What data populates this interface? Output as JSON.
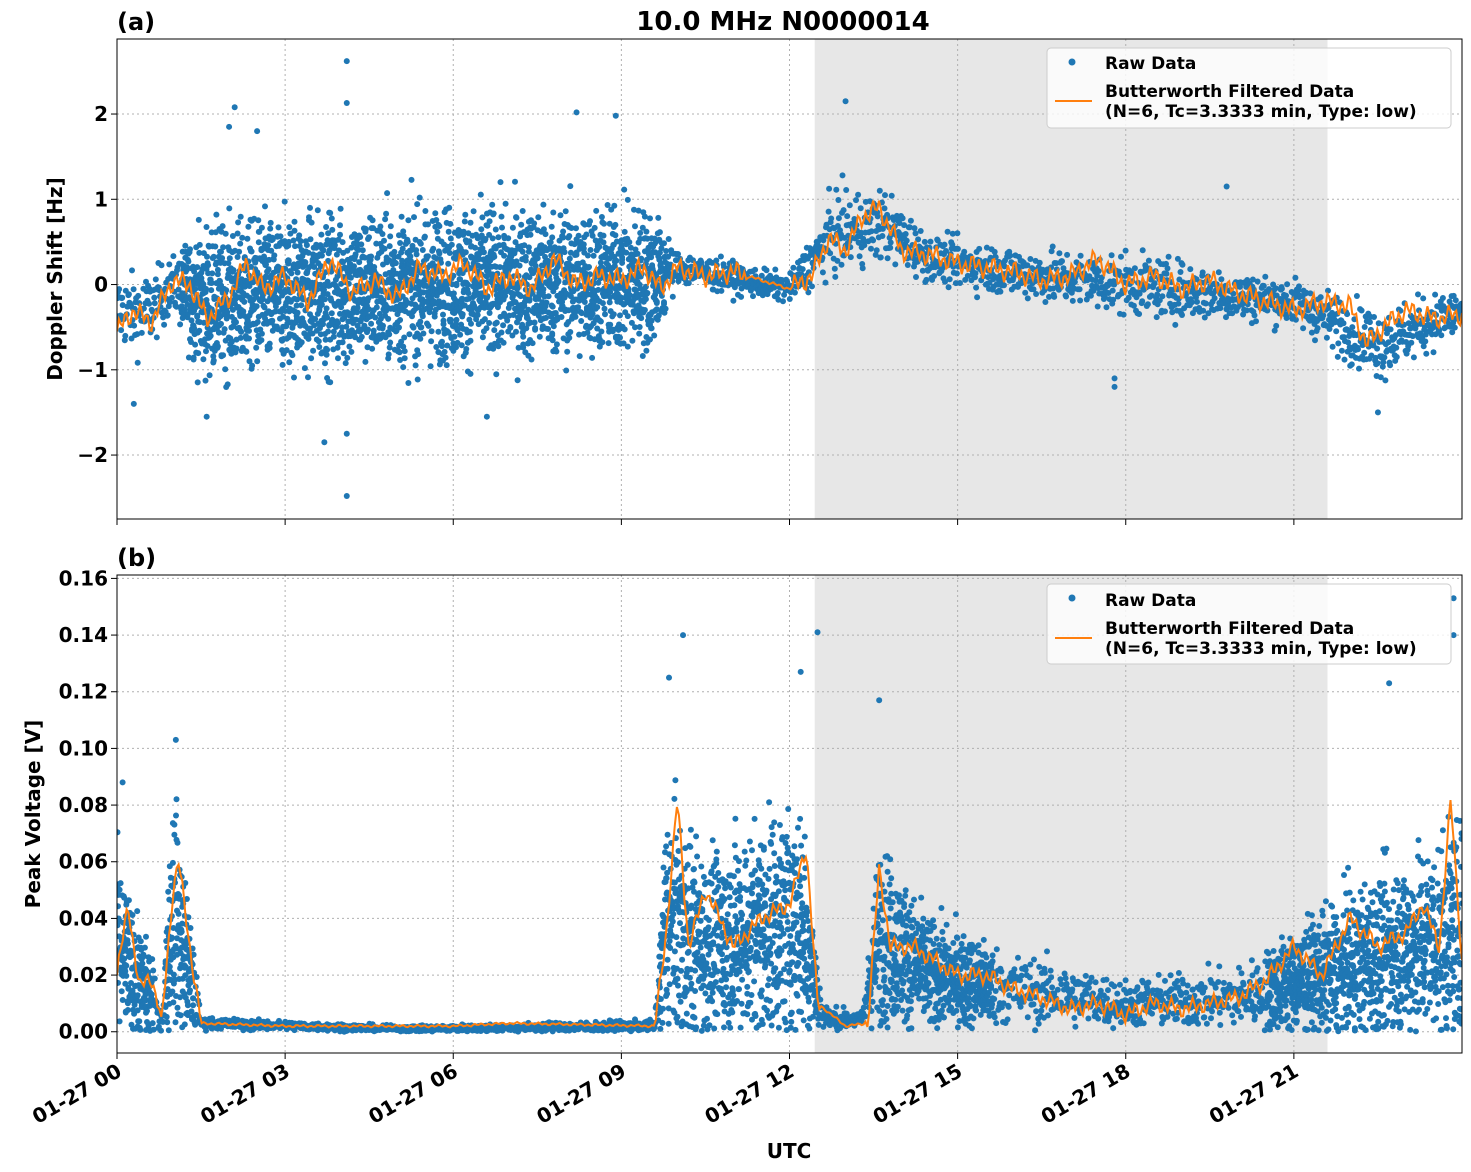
{
  "figure": {
    "title": "10.0 MHz N0000014",
    "xlabel": "UTC",
    "x_tick_labels": [
      "01-27 00",
      "01-27 03",
      "01-27 06",
      "01-27 09",
      "01-27 12",
      "01-27 15",
      "01-27 18",
      "01-27 21"
    ]
  },
  "colors": {
    "raw": "#1f77b4",
    "filtered": "#ff7f0e",
    "shade": "#e7e7e7",
    "grid": "#b0b0b0"
  },
  "chart_data": [
    {
      "type": "scatter",
      "panel_label": "(a)",
      "ylabel": "Doppler Shift [Hz]",
      "x_unit": "hours UTC from 01-27 00",
      "xlim": [
        0,
        24
      ],
      "ylim": [
        -2.75,
        2.88
      ],
      "yticks": [
        -2,
        -1,
        0,
        1,
        2
      ],
      "ytick_labels": [
        "−2",
        "−1",
        "0",
        "1",
        "2"
      ],
      "grid": true,
      "legend": {
        "placement": "top-right",
        "raw_label": "Raw Data",
        "filtered_label_line1": "Butterworth Filtered Data",
        "filtered_label_line2": "(N=6, Tc=3.3333 min, Type: low)"
      },
      "shaded_span": [
        12.45,
        21.6
      ],
      "raw_band": [
        {
          "x": 0.0,
          "y": -0.3,
          "spread": 0.4
        },
        {
          "x": 0.5,
          "y": -0.35,
          "spread": 0.45
        },
        {
          "x": 1.0,
          "y": 0.0,
          "spread": 0.3
        },
        {
          "x": 1.5,
          "y": -0.2,
          "spread": 0.8
        },
        {
          "x": 3.0,
          "y": -0.1,
          "spread": 0.85
        },
        {
          "x": 6.0,
          "y": 0.0,
          "spread": 0.85
        },
        {
          "x": 9.5,
          "y": 0.05,
          "spread": 0.8
        },
        {
          "x": 10.0,
          "y": 0.2,
          "spread": 0.2
        },
        {
          "x": 12.0,
          "y": -0.05,
          "spread": 0.15
        },
        {
          "x": 12.8,
          "y": 0.6,
          "spread": 0.45
        },
        {
          "x": 13.7,
          "y": 0.7,
          "spread": 0.4
        },
        {
          "x": 14.5,
          "y": 0.3,
          "spread": 0.25
        },
        {
          "x": 16.5,
          "y": 0.1,
          "spread": 0.3
        },
        {
          "x": 18.0,
          "y": 0.0,
          "spread": 0.35
        },
        {
          "x": 21.0,
          "y": -0.2,
          "spread": 0.25
        },
        {
          "x": 22.5,
          "y": -0.7,
          "spread": 0.4
        },
        {
          "x": 24.0,
          "y": -0.3,
          "spread": 0.25
        }
      ],
      "raw_outliers": [
        {
          "x": 4.1,
          "y": 2.62
        },
        {
          "x": 4.1,
          "y": 2.13
        },
        {
          "x": 2.1,
          "y": 2.08
        },
        {
          "x": 8.2,
          "y": 2.02
        },
        {
          "x": 8.9,
          "y": 1.98
        },
        {
          "x": 4.1,
          "y": -2.48
        },
        {
          "x": 3.7,
          "y": -1.85
        },
        {
          "x": 4.1,
          "y": -1.75
        },
        {
          "x": 13.0,
          "y": 2.15
        },
        {
          "x": 19.8,
          "y": 1.15
        },
        {
          "x": 17.8,
          "y": -1.2
        },
        {
          "x": 17.8,
          "y": -1.1
        },
        {
          "x": 2.0,
          "y": 1.85
        },
        {
          "x": 2.5,
          "y": 1.8
        },
        {
          "x": 6.6,
          "y": -1.55
        },
        {
          "x": 0.3,
          "y": -1.4
        },
        {
          "x": 22.5,
          "y": -1.5
        },
        {
          "x": 1.6,
          "y": -1.55
        }
      ],
      "filtered": {
        "x": [
          0,
          0.3,
          0.6,
          1.0,
          1.3,
          1.6,
          2.0,
          2.3,
          2.6,
          3.0,
          3.4,
          3.8,
          4.2,
          4.6,
          5.0,
          5.4,
          5.8,
          6.2,
          6.6,
          7.0,
          7.4,
          7.8,
          8.2,
          8.6,
          9.0,
          9.4,
          9.7,
          10.0,
          10.5,
          11.0,
          11.5,
          12.0,
          12.4,
          12.7,
          13.0,
          13.3,
          13.6,
          14.0,
          14.5,
          15.0,
          15.5,
          16.0,
          16.5,
          17.0,
          17.5,
          18.0,
          18.5,
          19.0,
          19.5,
          20.0,
          20.5,
          21.0,
          21.5,
          22.0,
          22.3,
          22.6,
          23.0,
          23.5,
          24.0
        ],
        "y": [
          -0.55,
          -0.3,
          -0.45,
          0.05,
          0.0,
          -0.4,
          -0.15,
          0.25,
          -0.05,
          0.1,
          -0.2,
          0.3,
          -0.1,
          0.05,
          -0.15,
          0.2,
          0.1,
          0.25,
          -0.05,
          0.1,
          -0.05,
          0.3,
          0.0,
          0.1,
          0.05,
          0.2,
          -0.05,
          0.2,
          0.1,
          0.15,
          0.05,
          -0.05,
          0.1,
          0.55,
          0.4,
          0.8,
          0.9,
          0.4,
          0.35,
          0.25,
          0.2,
          0.15,
          0.05,
          0.1,
          0.3,
          0.0,
          0.1,
          -0.05,
          0.05,
          -0.1,
          -0.2,
          -0.3,
          -0.2,
          -0.25,
          -0.7,
          -0.5,
          -0.3,
          -0.4,
          -0.35
        ]
      }
    },
    {
      "type": "scatter",
      "panel_label": "(b)",
      "ylabel": "Peak Voltage [V]",
      "x_unit": "hours UTC from 01-27 00",
      "xlim": [
        0,
        24
      ],
      "ylim": [
        -0.0075,
        0.1612
      ],
      "yticks": [
        0.0,
        0.02,
        0.04,
        0.06,
        0.08,
        0.1,
        0.12,
        0.14,
        0.16
      ],
      "ytick_labels": [
        "0.00",
        "0.02",
        "0.04",
        "0.06",
        "0.08",
        "0.10",
        "0.12",
        "0.14",
        "0.16"
      ],
      "grid": true,
      "legend": {
        "placement": "top-right",
        "raw_label": "Raw Data",
        "filtered_label_line1": "Butterworth Filtered Data",
        "filtered_label_line2": "(N=6, Tc=3.3333 min, Type: low)"
      },
      "shaded_span": [
        12.45,
        21.6
      ],
      "raw_band": [
        {
          "x": 0.0,
          "y": 0.03,
          "spread": 0.03
        },
        {
          "x": 0.3,
          "y": 0.02,
          "spread": 0.02
        },
        {
          "x": 0.6,
          "y": 0.012,
          "spread": 0.015
        },
        {
          "x": 0.8,
          "y": 0.004,
          "spread": 0.004
        },
        {
          "x": 1.0,
          "y": 0.045,
          "spread": 0.04
        },
        {
          "x": 1.3,
          "y": 0.02,
          "spread": 0.02
        },
        {
          "x": 1.5,
          "y": 0.003,
          "spread": 0.002
        },
        {
          "x": 5.0,
          "y": 0.001,
          "spread": 0.001
        },
        {
          "x": 9.6,
          "y": 0.002,
          "spread": 0.002
        },
        {
          "x": 9.8,
          "y": 0.04,
          "spread": 0.04
        },
        {
          "x": 10.5,
          "y": 0.03,
          "spread": 0.03
        },
        {
          "x": 12.2,
          "y": 0.04,
          "spread": 0.04
        },
        {
          "x": 12.6,
          "y": 0.005,
          "spread": 0.004
        },
        {
          "x": 13.3,
          "y": 0.004,
          "spread": 0.003
        },
        {
          "x": 13.6,
          "y": 0.035,
          "spread": 0.03
        },
        {
          "x": 14.5,
          "y": 0.02,
          "spread": 0.018
        },
        {
          "x": 16.0,
          "y": 0.015,
          "spread": 0.012
        },
        {
          "x": 18.0,
          "y": 0.01,
          "spread": 0.008
        },
        {
          "x": 20.0,
          "y": 0.012,
          "spread": 0.01
        },
        {
          "x": 21.5,
          "y": 0.02,
          "spread": 0.02
        },
        {
          "x": 23.0,
          "y": 0.03,
          "spread": 0.03
        },
        {
          "x": 24.0,
          "y": 0.035,
          "spread": 0.035
        }
      ],
      "raw_outliers": [
        {
          "x": 0.1,
          "y": 0.088
        },
        {
          "x": 1.05,
          "y": 0.103
        },
        {
          "x": 10.1,
          "y": 0.14
        },
        {
          "x": 9.85,
          "y": 0.125
        },
        {
          "x": 12.5,
          "y": 0.141
        },
        {
          "x": 12.2,
          "y": 0.127
        },
        {
          "x": 13.6,
          "y": 0.117
        },
        {
          "x": 23.85,
          "y": 0.153
        },
        {
          "x": 22.7,
          "y": 0.123
        },
        {
          "x": 23.85,
          "y": 0.14
        }
      ],
      "filtered": {
        "x": [
          0,
          0.2,
          0.4,
          0.6,
          0.8,
          1.0,
          1.1,
          1.3,
          1.5,
          3.0,
          6.0,
          7.0,
          9.6,
          9.8,
          10.0,
          10.2,
          10.5,
          11.0,
          11.5,
          12.0,
          12.3,
          12.5,
          13.0,
          13.4,
          13.6,
          13.8,
          14.2,
          14.6,
          15.0,
          15.5,
          16.0,
          16.5,
          17.0,
          17.5,
          18.0,
          18.5,
          19.0,
          19.5,
          20.0,
          20.5,
          21.0,
          21.5,
          22.0,
          22.5,
          23.0,
          23.3,
          23.6,
          23.8,
          24.0
        ],
        "y": [
          0.02,
          0.045,
          0.015,
          0.02,
          0.004,
          0.05,
          0.06,
          0.03,
          0.003,
          0.002,
          0.002,
          0.003,
          0.002,
          0.035,
          0.082,
          0.03,
          0.05,
          0.03,
          0.04,
          0.045,
          0.065,
          0.01,
          0.002,
          0.003,
          0.058,
          0.03,
          0.03,
          0.025,
          0.02,
          0.02,
          0.015,
          0.012,
          0.008,
          0.01,
          0.006,
          0.01,
          0.008,
          0.01,
          0.012,
          0.018,
          0.03,
          0.02,
          0.04,
          0.03,
          0.035,
          0.045,
          0.03,
          0.082,
          0.025
        ]
      }
    }
  ]
}
